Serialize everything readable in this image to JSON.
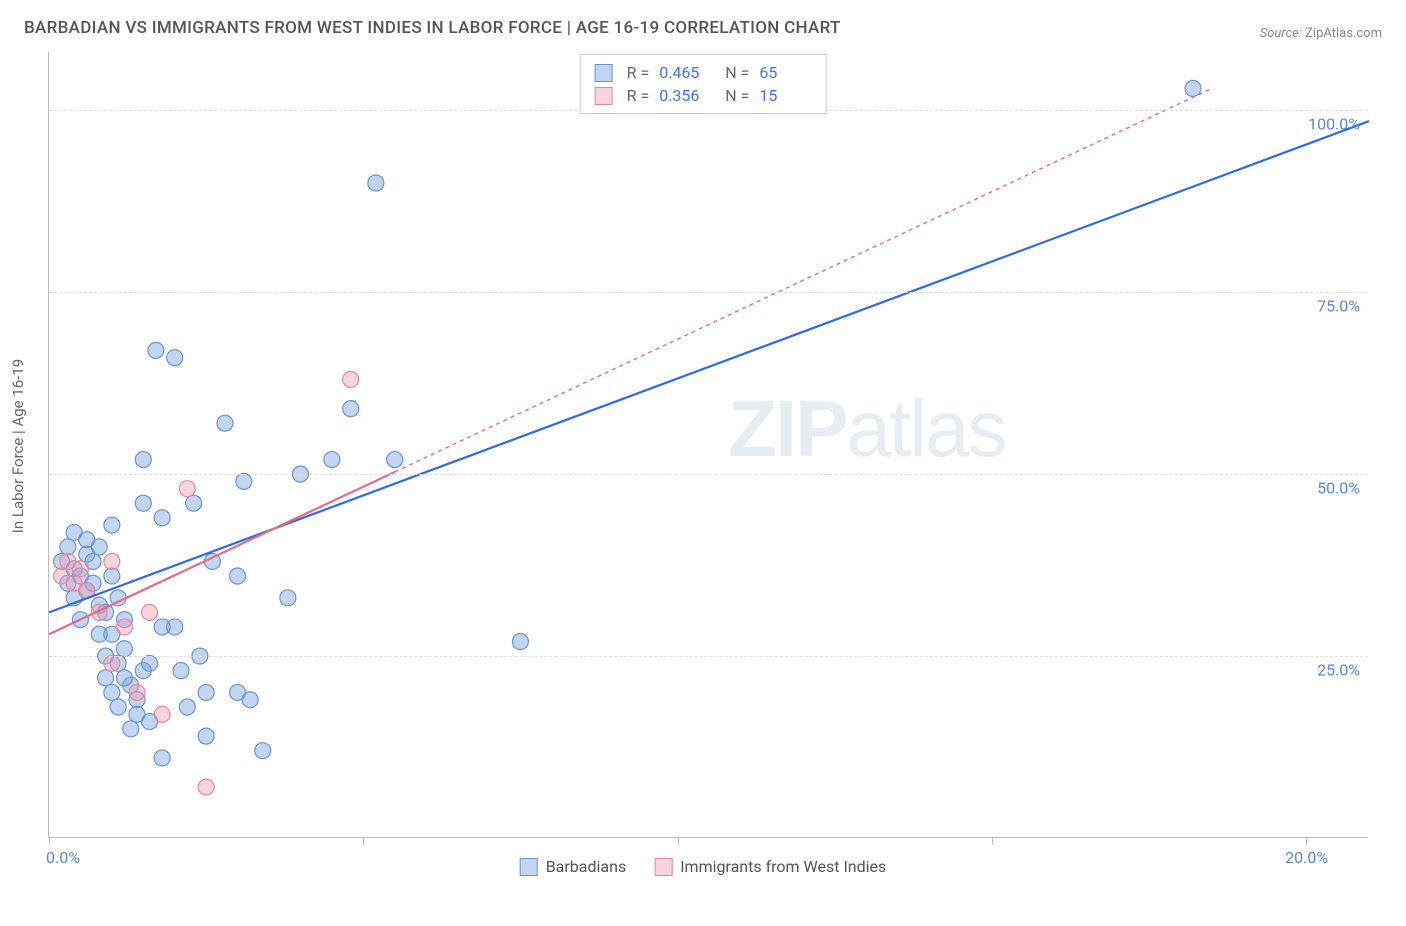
{
  "title": "BARBADIAN VS IMMIGRANTS FROM WEST INDIES IN LABOR FORCE | AGE 16-19 CORRELATION CHART",
  "source_label": "Source:",
  "source_value": "ZipAtlas.com",
  "y_axis_label": "In Labor Force | Age 16-19",
  "watermark": "ZIPatlas",
  "chart": {
    "type": "scatter",
    "background_color": "#ffffff",
    "grid_color": "#dddddd",
    "axis_color": "#bbbbbb",
    "text_color": "#666666",
    "tick_label_color": "#5b87d6",
    "xlim": [
      0.0,
      21.0
    ],
    "ylim": [
      0.0,
      108.0
    ],
    "y_ticks": [
      25.0,
      50.0,
      75.0,
      100.0
    ],
    "y_tick_labels": [
      "25.0%",
      "50.0%",
      "75.0%",
      "100.0%"
    ],
    "x_ticks": [
      0.0,
      5.0,
      10.0,
      15.0,
      20.0
    ],
    "x_tick_labels_shown": {
      "0": "0.0%",
      "20": "20.0%"
    },
    "marker_radius": 8,
    "marker_stroke_width": 1.2,
    "trend_line_width": 2.2
  },
  "series": [
    {
      "name": "Barbadians",
      "fill_color": "rgba(120, 165, 225, 0.45)",
      "stroke_color": "#6a95d0",
      "line_color": "#2e6ae6",
      "line_dash": "none",
      "R": "0.465",
      "N": "65",
      "trend": {
        "x1": 0.0,
        "y1": 31.0,
        "x2": 21.0,
        "y2": 98.5
      },
      "points": [
        [
          0.2,
          38
        ],
        [
          0.3,
          35
        ],
        [
          0.3,
          40
        ],
        [
          0.4,
          37
        ],
        [
          0.4,
          42
        ],
        [
          0.5,
          36
        ],
        [
          0.5,
          30
        ],
        [
          0.6,
          39
        ],
        [
          0.6,
          34
        ],
        [
          0.7,
          38
        ],
        [
          0.8,
          40
        ],
        [
          0.8,
          32
        ],
        [
          0.9,
          25
        ],
        [
          0.9,
          22
        ],
        [
          1.0,
          20
        ],
        [
          1.0,
          28
        ],
        [
          1.0,
          43
        ],
        [
          1.1,
          24
        ],
        [
          1.1,
          18
        ],
        [
          1.2,
          30
        ],
        [
          1.2,
          26
        ],
        [
          1.3,
          21
        ],
        [
          1.3,
          15
        ],
        [
          1.4,
          19
        ],
        [
          1.5,
          23
        ],
        [
          1.5,
          46
        ],
        [
          1.5,
          52
        ],
        [
          1.6,
          16
        ],
        [
          1.7,
          67
        ],
        [
          1.8,
          44
        ],
        [
          1.8,
          11
        ],
        [
          2.0,
          66
        ],
        [
          2.0,
          29
        ],
        [
          2.2,
          18
        ],
        [
          2.3,
          46
        ],
        [
          2.4,
          25
        ],
        [
          2.5,
          20
        ],
        [
          2.6,
          38
        ],
        [
          2.8,
          57
        ],
        [
          3.0,
          20
        ],
        [
          3.0,
          36
        ],
        [
          3.1,
          49
        ],
        [
          3.2,
          19
        ],
        [
          3.4,
          12
        ],
        [
          3.8,
          33
        ],
        [
          4.0,
          50
        ],
        [
          4.5,
          52
        ],
        [
          4.8,
          59
        ],
        [
          5.2,
          90
        ],
        [
          5.5,
          52
        ],
        [
          7.5,
          27
        ],
        [
          18.2,
          103
        ],
        [
          0.4,
          33
        ],
        [
          0.6,
          41
        ],
        [
          0.7,
          35
        ],
        [
          0.8,
          28
        ],
        [
          0.9,
          31
        ],
        [
          1.0,
          36
        ],
        [
          1.1,
          33
        ],
        [
          1.2,
          22
        ],
        [
          1.4,
          17
        ],
        [
          1.6,
          24
        ],
        [
          1.8,
          29
        ],
        [
          2.1,
          23
        ],
        [
          2.5,
          14
        ]
      ]
    },
    {
      "name": "Immigrants from West Indies",
      "fill_color": "rgba(240, 160, 180, 0.45)",
      "stroke_color": "#e28aa0",
      "line_color": "#e86a8a",
      "line_dash": "4 4",
      "R": "0.356",
      "N": "15",
      "trend": {
        "x1": 0.0,
        "y1": 28.0,
        "x2": 18.5,
        "y2": 103.0
      },
      "solid_until_x": 5.5,
      "points": [
        [
          0.2,
          36
        ],
        [
          0.3,
          38
        ],
        [
          0.4,
          35
        ],
        [
          0.5,
          37
        ],
        [
          0.6,
          34
        ],
        [
          0.8,
          31
        ],
        [
          1.0,
          24
        ],
        [
          1.2,
          29
        ],
        [
          1.4,
          20
        ],
        [
          1.6,
          31
        ],
        [
          1.8,
          17
        ],
        [
          2.2,
          48
        ],
        [
          2.5,
          7
        ],
        [
          1.0,
          38
        ],
        [
          4.8,
          63
        ]
      ]
    }
  ],
  "legend_bottom": [
    {
      "label": "Barbadians",
      "series": 0
    },
    {
      "label": "Immigrants from West Indies",
      "series": 1
    }
  ]
}
